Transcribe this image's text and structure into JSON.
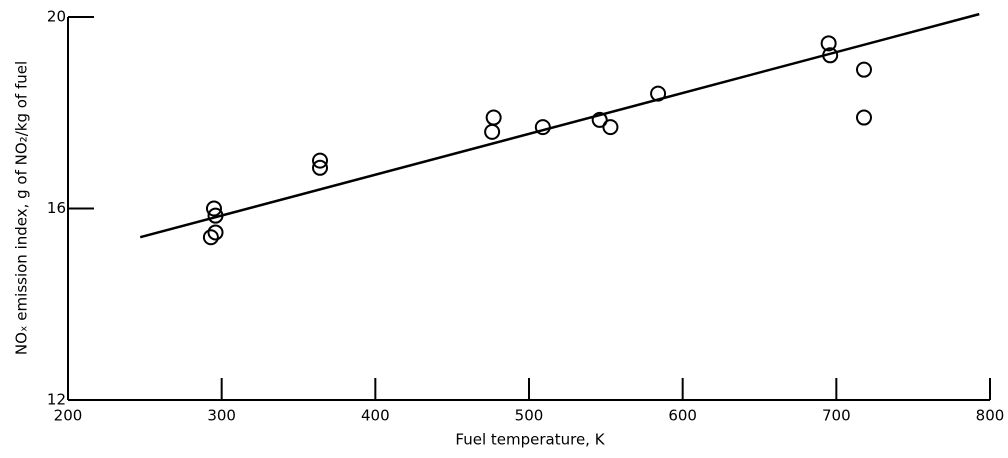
{
  "chart_data": {
    "type": "scatter",
    "xlabel": "Fuel temperature, K",
    "ylabel": "NOₓ emission index, g of NO₂/kg of fuel",
    "x": [
      295,
      296,
      293,
      296,
      364,
      364,
      477,
      476,
      509,
      553,
      546,
      584,
      695,
      696,
      718,
      718
    ],
    "values": [
      16.0,
      15.85,
      15.4,
      15.5,
      17.0,
      16.85,
      17.9,
      17.6,
      17.7,
      17.7,
      17.85,
      18.4,
      19.45,
      19.2,
      18.9,
      17.9
    ],
    "fit": {
      "x": [
        247,
        793
      ],
      "values": [
        15.4,
        20.06
      ]
    },
    "color": "#000000",
    "xlim": [
      200,
      800
    ],
    "xticks": [
      200,
      300,
      400,
      500,
      600,
      700,
      800
    ],
    "ylim": [
      12,
      20
    ],
    "yticks": [
      12,
      16,
      20
    ]
  }
}
